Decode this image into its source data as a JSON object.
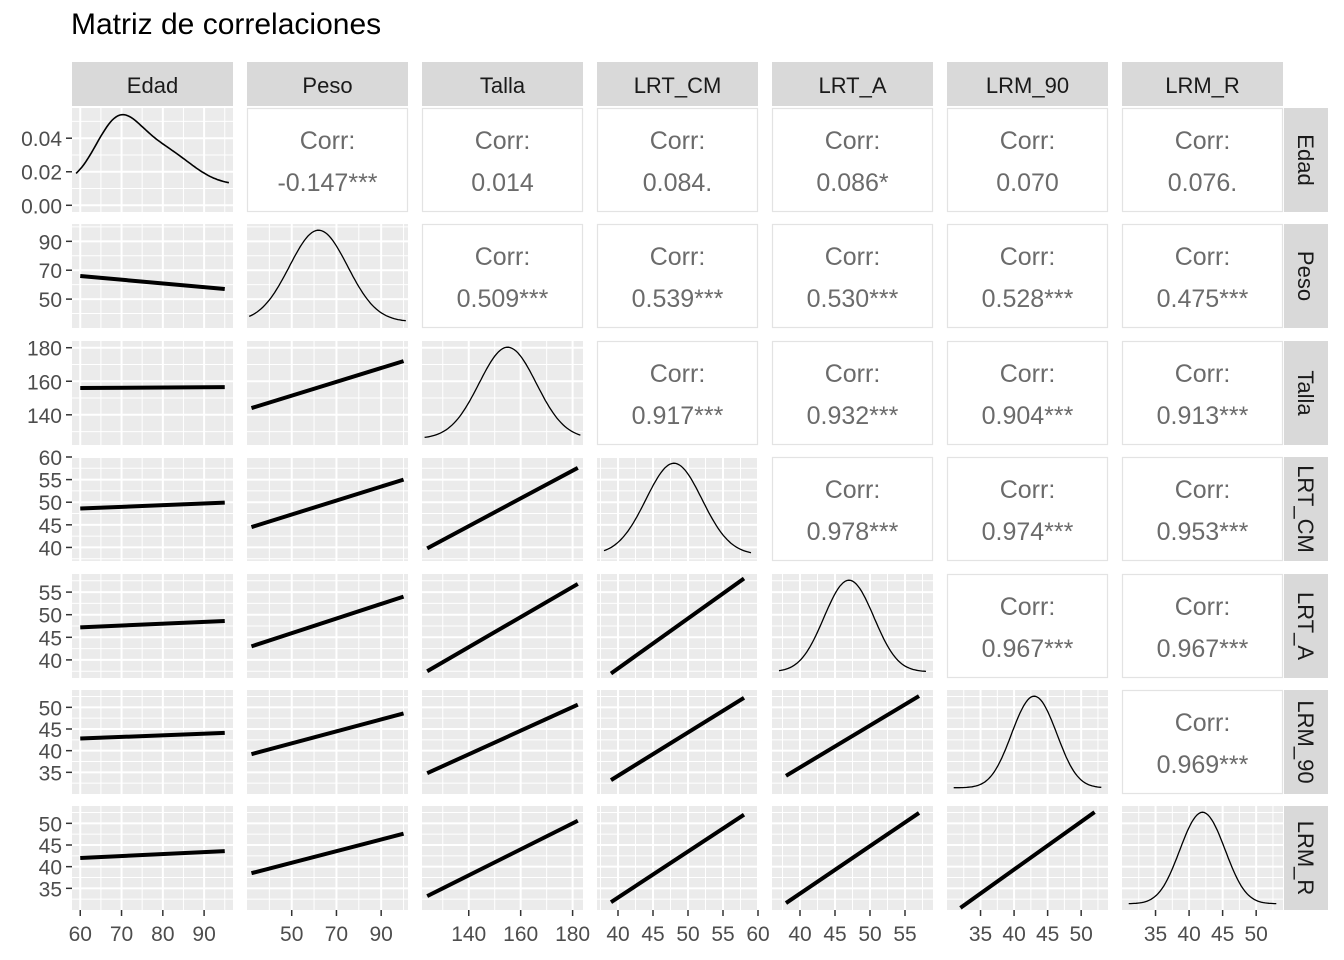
{
  "chart_data": {
    "type": "scatter",
    "title": "Matriz de correlaciones",
    "variables": [
      "Edad",
      "Peso",
      "Talla",
      "LRT_CM",
      "LRT_A",
      "LRM_90",
      "LRM_R"
    ],
    "colors": {
      "point": "#add8e6",
      "fit_line": "#000000",
      "panel_bg": "#ebebeb",
      "grid": "#ffffff",
      "strip_bg": "#d9d9d9",
      "corr_text": "#6b6b6b"
    },
    "corr_label": "Corr:",
    "correlations": [
      {
        "row": "Peso",
        "col": "Edad",
        "text": "-0.147***"
      },
      {
        "row": "Talla",
        "col": "Edad",
        "text": "0.014"
      },
      {
        "row": "LRT_CM",
        "col": "Edad",
        "text": "0.084."
      },
      {
        "row": "LRT_A",
        "col": "Edad",
        "text": "0.086*"
      },
      {
        "row": "LRM_90",
        "col": "Edad",
        "text": "0.070"
      },
      {
        "row": "LRM_R",
        "col": "Edad",
        "text": "0.076."
      },
      {
        "row": "Talla",
        "col": "Peso",
        "text": "0.509***"
      },
      {
        "row": "LRT_CM",
        "col": "Peso",
        "text": "0.539***"
      },
      {
        "row": "LRT_A",
        "col": "Peso",
        "text": "0.530***"
      },
      {
        "row": "LRM_90",
        "col": "Peso",
        "text": "0.528***"
      },
      {
        "row": "LRM_R",
        "col": "Peso",
        "text": "0.475***"
      },
      {
        "row": "LRT_CM",
        "col": "Talla",
        "text": "0.917***"
      },
      {
        "row": "LRT_A",
        "col": "Talla",
        "text": "0.932***"
      },
      {
        "row": "LRM_90",
        "col": "Talla",
        "text": "0.904***"
      },
      {
        "row": "LRM_R",
        "col": "Talla",
        "text": "0.913***"
      },
      {
        "row": "LRT_A",
        "col": "LRT_CM",
        "text": "0.978***"
      },
      {
        "row": "LRM_90",
        "col": "LRT_CM",
        "text": "0.974***"
      },
      {
        "row": "LRM_R",
        "col": "LRT_CM",
        "text": "0.953***"
      },
      {
        "row": "LRM_90",
        "col": "LRT_A",
        "text": "0.967***"
      },
      {
        "row": "LRM_R",
        "col": "LRT_A",
        "text": "0.967***"
      },
      {
        "row": "LRM_R",
        "col": "LRM_90",
        "text": "0.969***"
      }
    ],
    "axes": {
      "Edad": {
        "range": [
          58,
          97
        ],
        "ticks": [
          60,
          70,
          80,
          90
        ],
        "mean": 75,
        "sd": 8
      },
      "Peso": {
        "range": [
          30,
          102
        ],
        "ticks": [
          50,
          70,
          90
        ],
        "mean": 62,
        "sd": 13
      },
      "Talla": {
        "range": [
          122,
          184
        ],
        "ticks": [
          140,
          160,
          180
        ],
        "mean": 155,
        "sd": 11
      },
      "LRT_CM": {
        "range": [
          37,
          60
        ],
        "ticks": [
          40,
          45,
          50,
          55,
          60
        ],
        "mean": 48,
        "sd": 4
      },
      "LRT_A": {
        "range": [
          36,
          59
        ],
        "ticks": [
          40,
          45,
          50,
          55
        ],
        "mean": 47,
        "sd": 4
      },
      "LRM_90": {
        "range": [
          30,
          54
        ],
        "ticks": [
          35,
          40,
          45,
          50
        ],
        "mean": 43,
        "sd": 3.6
      },
      "LRM_R": {
        "range": [
          30,
          54
        ],
        "ticks": [
          35,
          40,
          45,
          50
        ],
        "mean": 42,
        "sd": 3.6
      }
    },
    "density_yaxis": {
      "variable": "Edad",
      "range": [
        -0.004,
        0.058
      ],
      "ticks": [
        0.0,
        0.02,
        0.04
      ],
      "tick_labels": [
        "0.00",
        "0.02",
        "0.04"
      ]
    },
    "fit_lines": [
      {
        "row": "Peso",
        "col": "Edad",
        "y_start": 66,
        "y_end": 57
      },
      {
        "row": "Talla",
        "col": "Edad",
        "y_start": 156,
        "y_end": 156.5
      },
      {
        "row": "LRT_CM",
        "col": "Edad",
        "y_start": 48.6,
        "y_end": 49.9
      },
      {
        "row": "LRT_A",
        "col": "Edad",
        "y_start": 47.2,
        "y_end": 48.6
      },
      {
        "row": "LRM_90",
        "col": "Edad",
        "y_start": 42.8,
        "y_end": 44.1
      },
      {
        "row": "LRM_R",
        "col": "Edad",
        "y_start": 42,
        "y_end": 43.6
      },
      {
        "row": "Talla",
        "col": "Peso",
        "y_start": 144,
        "y_end": 172
      },
      {
        "row": "LRT_CM",
        "col": "Peso",
        "y_start": 44.5,
        "y_end": 55
      },
      {
        "row": "LRT_A",
        "col": "Peso",
        "y_start": 43,
        "y_end": 54
      },
      {
        "row": "LRM_90",
        "col": "Peso",
        "y_start": 39.2,
        "y_end": 48.6
      },
      {
        "row": "LRM_R",
        "col": "Peso",
        "y_start": 38.5,
        "y_end": 47.6
      },
      {
        "row": "LRT_CM",
        "col": "Talla",
        "y_start": 39.8,
        "y_end": 57.6
      },
      {
        "row": "LRT_A",
        "col": "Talla",
        "y_start": 37.5,
        "y_end": 56.8
      },
      {
        "row": "LRM_90",
        "col": "Talla",
        "y_start": 34.8,
        "y_end": 50.6
      },
      {
        "row": "LRM_R",
        "col": "Talla",
        "y_start": 33.2,
        "y_end": 50.6
      },
      {
        "row": "LRT_A",
        "col": "LRT_CM",
        "y_start": 37,
        "y_end": 58
      },
      {
        "row": "LRM_90",
        "col": "LRT_CM",
        "y_start": 33.2,
        "y_end": 52.2
      },
      {
        "row": "LRM_R",
        "col": "LRT_CM",
        "y_start": 31.8,
        "y_end": 52
      },
      {
        "row": "LRM_90",
        "col": "LRT_A",
        "y_start": 34.2,
        "y_end": 52.6
      },
      {
        "row": "LRM_R",
        "col": "LRT_A",
        "y_start": 31.6,
        "y_end": 52.4
      },
      {
        "row": "LRM_R",
        "col": "LRM_90",
        "y_start": 30.5,
        "y_end": 52.6
      }
    ]
  }
}
